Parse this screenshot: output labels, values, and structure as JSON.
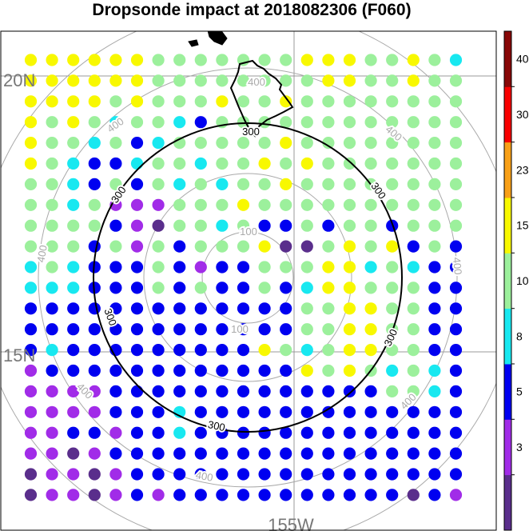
{
  "chart_data": {
    "type": "scatter",
    "title": "Dropsonde impact at 2018082306 (F060)",
    "lat_labels": [
      "20N",
      "15N"
    ],
    "lon_labels": [
      "155W"
    ],
    "range_ring_labels": {
      "r100": [
        "100",
        "100"
      ],
      "r300": [
        "300",
        "300",
        "300",
        "300",
        "300"
      ],
      "r400": [
        "400",
        "400",
        "400",
        "400",
        "400",
        "400",
        "400"
      ]
    },
    "colorbar": {
      "tick_labels": [
        "3",
        "5",
        "8",
        "10",
        "15",
        "23",
        "30",
        "40"
      ],
      "colors": [
        "#5a2e8c",
        "#a12ce8",
        "#0000f0",
        "#18e8f0",
        "#9cf09c",
        "#f8f800",
        "#f8a018",
        "#f80000",
        "#880808"
      ]
    },
    "palette": {
      "P": "#5a2e8c",
      "V": "#a12ce8",
      "B": "#0000f0",
      "C": "#18e8f0",
      "G": "#9cf09c",
      "Y": "#f8f800"
    },
    "grid_rows": [
      "YYYYYYGGGGGGGYYYGGYGC",
      "YYYYYYGGGGGGGGYYGGYGG",
      "YYYYGYGGGYGGYGGGGGGGG",
      "YGYGCGGCBGGGGGGGGGGGG",
      "YGGCGBCGGGGGYGGGGGGGG",
      "YGCBBCGGCGGYGYGGGGGGG",
      "GGCBGBGCGCGGYGGGGGGGG",
      "GGCGVVVGGGYGGGGGGGGGG",
      "GGGGBVPGGCGBBGBGGBGGG",
      "GGGBGVGBGGGYPPGYGYBGB",
      "CGCBBBGBVBBGGGYYCGCBB",
      "CCCBBBGBGBBGBCYYGGGBB",
      "BBBBBBBBBBBBBGGYYGGBB",
      "BBBBBBBBBBBBBGGYYGGBB",
      "BCBBBBBBBBBYGCGYYGGBB",
      "VBBBBBBBBBBBBYGYGCGCB",
      "VVVVBBBBBBBBBBBBBGGCB",
      "VVVVBBBCBBBBBBBBBBBBB",
      "VVBBVBBCBBBBBBBBBBBBB",
      "VVPVBBBBBBBBBBBBBBBBB",
      "PVVPVBBBBBBBBBBBBBBBB",
      "PVVPVBVBBBBBBBBBBBPBV"
    ]
  }
}
